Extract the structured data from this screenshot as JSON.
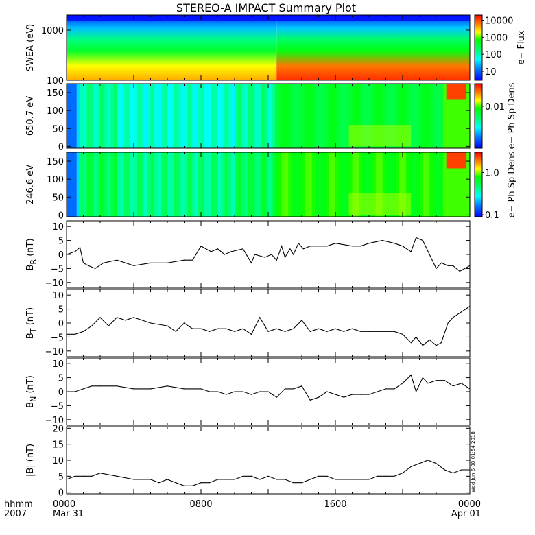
{
  "title": "STEREO-A IMPACT Summary Plot",
  "footer": {
    "left_top": "hhmm",
    "left_bottom": "2007",
    "x_ticks": [
      {
        "time": "0000",
        "date": "Mar 31",
        "hour": 0
      },
      {
        "time": "0800",
        "date": "",
        "hour": 8
      },
      {
        "time": "1600",
        "date": "",
        "hour": 16
      },
      {
        "time": "0000",
        "date": "Apr 01",
        "hour": 24
      }
    ]
  },
  "stamp": "Wed Jun  6 08:01:54 2018",
  "chart_data": [
    {
      "type": "heatmap",
      "ylabel": "SWEA (eV)",
      "yscale": "log",
      "ylim": [
        100,
        2000
      ],
      "yticks": [
        {
          "label": "1000",
          "value": 1000
        },
        {
          "label": "100",
          "value": 100
        }
      ],
      "colorbar": {
        "label": "e− Flux",
        "scale": "log",
        "range": [
          3,
          20000
        ],
        "ticks": [
          "10000",
          "1000",
          "100",
          "10"
        ],
        "tick_values": [
          10000,
          1000,
          100,
          10
        ]
      },
      "description_values": {
        "low_energy_flux_early": 3000,
        "low_energy_flux_late": 10000,
        "high_energy_flux": 10
      }
    },
    {
      "type": "heatmap",
      "ylabel": "650.7 eV",
      "ylim": [
        -5,
        175
      ],
      "yticks": [
        {
          "label": "150",
          "value": 150
        },
        {
          "label": "100",
          "value": 100
        },
        {
          "label": "50",
          "value": 50
        },
        {
          "label": "0",
          "value": 0
        }
      ],
      "colorbar": {
        "label": "e− Ph Sp Dens",
        "scale": "log",
        "range": [
          0.0005,
          0.05
        ],
        "ticks": [
          "0.01"
        ],
        "tick_values": [
          0.01
        ]
      }
    },
    {
      "type": "heatmap",
      "ylabel": "246.6 eV",
      "ylim": [
        -5,
        175
      ],
      "yticks": [
        {
          "label": "150",
          "value": 150
        },
        {
          "label": "100",
          "value": 100
        },
        {
          "label": "50",
          "value": 50
        },
        {
          "label": "0",
          "value": 0
        }
      ],
      "colorbar": {
        "label": "e− Ph Sp Dens",
        "scale": "log",
        "range": [
          0.09,
          3
        ],
        "ticks": [
          "1.0",
          "0.1"
        ],
        "tick_values": [
          1.0,
          0.1
        ]
      }
    },
    {
      "type": "line",
      "ylabel": "B",
      "ylabel_sub": "R",
      "ylabel_unit": " (nT)",
      "ylim": [
        -12,
        12
      ],
      "yticks": [
        {
          "label": "10",
          "value": 10
        },
        {
          "label": "5",
          "value": 5
        },
        {
          "label": "0",
          "value": 0
        },
        {
          "label": "−5",
          "value": -5
        },
        {
          "label": "−10",
          "value": -10
        }
      ],
      "x": [
        0,
        0.5,
        0.8,
        1.0,
        1.3,
        1.7,
        2.2,
        3.0,
        4.0,
        5.0,
        6.0,
        7.0,
        7.5,
        8.0,
        8.6,
        9.0,
        9.4,
        9.8,
        10.5,
        11.0,
        11.2,
        11.8,
        12.2,
        12.5,
        12.8,
        13.0,
        13.3,
        13.5,
        13.8,
        14.1,
        14.5,
        15.0,
        15.5,
        16.0,
        16.5,
        17.0,
        17.5,
        18.0,
        18.8,
        19.5,
        20.0,
        20.5,
        20.8,
        21.2,
        21.6,
        22.0,
        22.3,
        22.7,
        23.0,
        23.4,
        23.7,
        24.0
      ],
      "y": [
        0,
        1,
        2.5,
        -3,
        -4,
        -5,
        -3,
        -2,
        -4,
        -3,
        -3,
        -2,
        -2,
        3,
        1,
        2,
        0,
        1,
        2,
        -3,
        0,
        -1,
        0,
        -2,
        3,
        -1,
        2,
        0,
        4,
        2,
        3,
        3,
        3,
        4,
        3.5,
        3,
        3,
        4,
        5,
        4,
        3,
        1,
        6,
        5,
        0,
        -5,
        -3,
        -4,
        -4,
        -6,
        -5,
        -4
      ]
    },
    {
      "type": "line",
      "ylabel": "B",
      "ylabel_sub": "T",
      "ylabel_unit": " (nT)",
      "ylim": [
        -12,
        12
      ],
      "yticks": [
        {
          "label": "10",
          "value": 10
        },
        {
          "label": "5",
          "value": 5
        },
        {
          "label": "0",
          "value": 0
        },
        {
          "label": "−5",
          "value": -5
        },
        {
          "label": "−10",
          "value": -10
        }
      ],
      "x": [
        0,
        0.5,
        1.0,
        1.5,
        2.0,
        2.5,
        3.0,
        3.5,
        4.0,
        4.5,
        5.0,
        6.0,
        6.5,
        7.0,
        7.5,
        8.0,
        8.5,
        9.0,
        9.5,
        10.0,
        10.5,
        11.0,
        11.5,
        12.0,
        12.5,
        13.0,
        13.5,
        14.0,
        14.5,
        15.0,
        15.5,
        16.0,
        16.5,
        17.0,
        17.5,
        18.0,
        18.5,
        19.0,
        19.5,
        20.0,
        20.5,
        20.8,
        21.2,
        21.6,
        22.0,
        22.3,
        22.7,
        23.0,
        23.5,
        24.0
      ],
      "y": [
        -4,
        -4,
        -3,
        -1,
        2,
        -1,
        2,
        1,
        2,
        1,
        0,
        -1,
        -3,
        0,
        -2,
        -2,
        -3,
        -2,
        -2,
        -3,
        -2,
        -4,
        2,
        -3,
        -2,
        -3,
        -2,
        1,
        -3,
        -2,
        -3,
        -2,
        -3,
        -2,
        -3,
        -3,
        -3,
        -3,
        -3,
        -4,
        -7,
        -5,
        -8,
        -6,
        -8,
        -7,
        0,
        2,
        4,
        6
      ]
    },
    {
      "type": "line",
      "ylabel": "B",
      "ylabel_sub": "N",
      "ylabel_unit": " (nT)",
      "ylim": [
        -12,
        12
      ],
      "yticks": [
        {
          "label": "10",
          "value": 10
        },
        {
          "label": "5",
          "value": 5
        },
        {
          "label": "0",
          "value": 0
        },
        {
          "label": "−5",
          "value": -5
        },
        {
          "label": "−10",
          "value": -10
        }
      ],
      "x": [
        0,
        0.5,
        1.0,
        1.5,
        2.0,
        3.0,
        4.0,
        5.0,
        6.0,
        7.0,
        8.0,
        8.5,
        9.0,
        9.5,
        10.0,
        10.5,
        11.0,
        11.5,
        12.0,
        12.5,
        13.0,
        13.5,
        14.0,
        14.5,
        15.0,
        15.5,
        16.0,
        16.5,
        17.0,
        17.5,
        18.0,
        18.5,
        19.0,
        19.5,
        20.0,
        20.5,
        20.8,
        21.2,
        21.5,
        22.0,
        22.5,
        23.0,
        23.5,
        24.0
      ],
      "y": [
        0,
        0,
        1,
        2,
        2,
        2,
        1,
        1,
        2,
        1,
        1,
        0,
        0,
        -1,
        0,
        0,
        -1,
        0,
        0,
        -2,
        1,
        1,
        2,
        -3,
        -2,
        0,
        -1,
        -2,
        -1,
        -1,
        -1,
        0,
        1,
        1,
        3,
        6,
        0,
        5,
        3,
        4,
        4,
        2,
        3,
        1
      ]
    },
    {
      "type": "line",
      "ylabel": "|B| (nT)",
      "ylim": [
        -0.5,
        20.5
      ],
      "yticks": [
        {
          "label": "20",
          "value": 20
        },
        {
          "label": "15",
          "value": 15
        },
        {
          "label": "10",
          "value": 10
        },
        {
          "label": "5",
          "value": 5
        },
        {
          "label": "0",
          "value": 0
        }
      ],
      "x": [
        0,
        0.5,
        1.0,
        1.5,
        2.0,
        3.0,
        4.0,
        5.0,
        5.5,
        6.0,
        6.5,
        7.0,
        7.5,
        8.0,
        8.5,
        9.0,
        9.5,
        10.0,
        10.5,
        11.0,
        11.5,
        12.0,
        12.5,
        13.0,
        13.5,
        14.0,
        14.5,
        15.0,
        15.5,
        16.0,
        16.5,
        17.0,
        17.5,
        18.0,
        18.5,
        19.0,
        19.5,
        20.0,
        20.5,
        21.0,
        21.5,
        22.0,
        22.5,
        23.0,
        23.5,
        24.0
      ],
      "y": [
        4,
        5,
        5,
        5,
        6,
        5,
        4,
        4,
        3,
        4,
        3,
        2,
        2,
        3,
        3,
        4,
        4,
        4,
        5,
        5,
        4,
        5,
        4,
        4,
        3,
        3,
        4,
        5,
        5,
        4,
        4,
        4,
        4,
        4,
        5,
        5,
        5,
        6,
        8,
        9,
        10,
        9,
        7,
        6,
        7,
        7
      ]
    }
  ]
}
